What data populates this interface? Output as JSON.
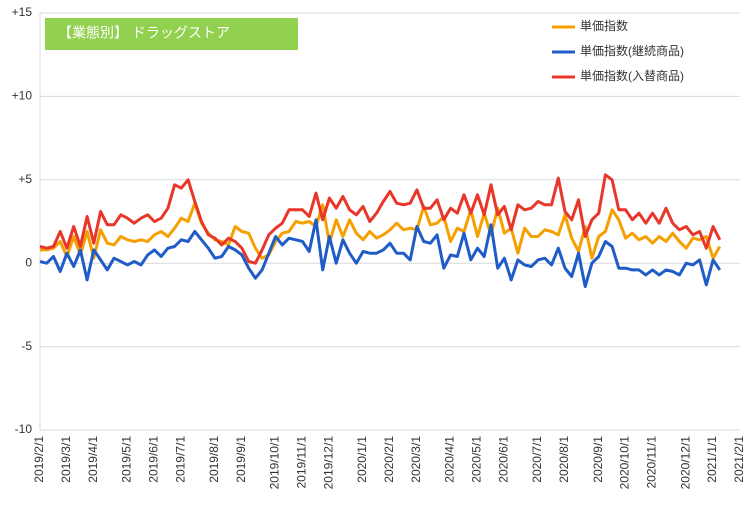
{
  "chart_data": {
    "type": "line",
    "title": "【業態別】 ドラッグストア",
    "title_color": "#92d050",
    "categories": [
      "2019/2/1",
      null,
      null,
      null,
      "2019/3/1",
      null,
      null,
      null,
      "2019/4/1",
      null,
      null,
      null,
      null,
      "2019/5/1",
      null,
      null,
      null,
      "2019/6/1",
      null,
      null,
      null,
      "2019/7/1",
      null,
      null,
      null,
      null,
      "2019/8/1",
      null,
      null,
      null,
      "2019/9/1",
      null,
      null,
      null,
      null,
      "2019/10/1",
      null,
      null,
      null,
      "2019/11/1",
      null,
      null,
      null,
      "2019/12/1",
      null,
      null,
      null,
      null,
      "2020/1/1",
      null,
      null,
      null,
      "2020/2/1",
      null,
      null,
      null,
      "2020/3/1",
      null,
      null,
      null,
      null,
      "2020/4/1",
      null,
      null,
      null,
      "2020/5/1",
      null,
      null,
      null,
      "2020/6/1",
      null,
      null,
      null,
      null,
      "2020/7/1",
      null,
      null,
      null,
      "2020/8/1",
      null,
      null,
      null,
      null,
      "2020/9/1",
      null,
      null,
      null,
      "2020/10/1",
      null,
      null,
      null,
      "2020/11/1",
      null,
      null,
      null,
      null,
      "2020/12/1",
      null,
      null,
      null,
      "2021/1/1",
      null,
      null,
      null,
      "2021/2/1"
    ],
    "series": [
      {
        "name": "単価指数",
        "color": "#f5a000",
        "values": [
          0.8,
          0.8,
          0.9,
          1.3,
          0.4,
          1.6,
          0.5,
          1.9,
          0.3,
          2.0,
          1.2,
          1.1,
          1.6,
          1.4,
          1.3,
          1.4,
          1.3,
          1.7,
          1.9,
          1.6,
          2.1,
          2.7,
          2.5,
          3.6,
          2.4,
          1.8,
          1.4,
          1.3,
          1.1,
          2.2,
          1.9,
          1.8,
          0.9,
          0.3,
          0.5,
          1.3,
          1.8,
          1.9,
          2.5,
          2.4,
          2.5,
          2.2,
          3.5,
          1.2,
          2.6,
          1.6,
          2.6,
          1.8,
          1.4,
          1.9,
          1.5,
          1.7,
          2.0,
          2.4,
          2.0,
          2.1,
          2.0,
          3.4,
          2.3,
          2.4,
          2.8,
          1.3,
          2.1,
          1.9,
          3.2,
          1.6,
          3.0,
          1.7,
          3.3,
          1.8,
          2.1,
          0.6,
          2.1,
          1.6,
          1.6,
          2.0,
          1.9,
          1.7,
          2.9,
          1.5,
          0.7,
          2.2,
          0.3,
          1.6,
          1.9,
          3.2,
          2.6,
          1.5,
          1.8,
          1.4,
          1.6,
          1.2,
          1.6,
          1.3,
          1.8,
          1.3,
          0.9,
          1.5,
          1.4,
          1.6,
          0.3,
          1.0,
          null,
          null,
          null
        ]
      },
      {
        "name": "単価指数(継続商品)",
        "color": "#1f5cc7",
        "values": [
          0.1,
          0.0,
          0.4,
          -0.5,
          0.6,
          -0.2,
          0.8,
          -1.0,
          0.8,
          0.2,
          -0.4,
          0.3,
          0.1,
          -0.1,
          0.1,
          -0.1,
          0.5,
          0.8,
          0.4,
          0.9,
          1.0,
          1.4,
          1.3,
          1.9,
          1.4,
          0.9,
          0.3,
          0.4,
          1.0,
          0.8,
          0.5,
          -0.3,
          -0.9,
          -0.4,
          0.6,
          1.6,
          1.1,
          1.5,
          1.4,
          1.3,
          0.7,
          2.6,
          -0.4,
          1.6,
          0.0,
          1.4,
          0.6,
          0.0,
          0.7,
          0.6,
          0.6,
          0.8,
          1.2,
          0.6,
          0.6,
          0.2,
          2.2,
          1.3,
          1.2,
          1.7,
          -0.3,
          0.5,
          0.4,
          1.8,
          0.2,
          0.9,
          0.4,
          2.3,
          -0.3,
          0.3,
          -1.0,
          0.2,
          -0.1,
          -0.2,
          0.2,
          0.3,
          -0.1,
          0.9,
          -0.3,
          -0.8,
          0.6,
          -1.4,
          0.0,
          0.4,
          1.3,
          1.0,
          -0.3,
          -0.3,
          -0.4,
          -0.4,
          -0.7,
          -0.4,
          -0.7,
          -0.4,
          -0.5,
          -0.7,
          0.0,
          -0.1,
          0.2,
          -1.3,
          0.2,
          -0.4,
          null,
          null,
          null
        ]
      },
      {
        "name": "単価指数(入替商品)",
        "color": "#e8372a",
        "values": [
          1.0,
          0.9,
          1.0,
          1.9,
          0.9,
          2.2,
          1.0,
          2.8,
          1.2,
          3.1,
          2.3,
          2.3,
          2.9,
          2.7,
          2.4,
          2.7,
          2.9,
          2.5,
          2.7,
          3.3,
          4.7,
          4.5,
          5.0,
          3.7,
          2.5,
          1.7,
          1.5,
          1.1,
          1.5,
          1.3,
          0.9,
          0.1,
          0.0,
          0.8,
          1.7,
          2.1,
          2.4,
          3.2,
          3.2,
          3.2,
          2.8,
          4.2,
          2.6,
          3.9,
          3.3,
          4.0,
          3.2,
          2.9,
          3.4,
          2.5,
          3.0,
          3.7,
          4.3,
          3.6,
          3.5,
          3.6,
          4.4,
          3.3,
          3.3,
          3.8,
          2.6,
          3.3,
          3.0,
          4.1,
          3.0,
          4.1,
          2.9,
          4.7,
          2.9,
          3.4,
          2.0,
          3.5,
          3.2,
          3.3,
          3.7,
          3.5,
          3.5,
          5.1,
          3.1,
          2.6,
          3.8,
          1.6,
          2.6,
          3.0,
          5.3,
          5.0,
          3.2,
          3.2,
          2.6,
          3.0,
          2.4,
          3.0,
          2.4,
          3.3,
          2.4,
          2.0,
          2.2,
          1.7,
          1.9,
          0.9,
          2.2,
          1.4,
          null,
          null,
          null
        ]
      }
    ],
    "ylim": [
      -10,
      15
    ],
    "yticks": [
      -10,
      -5,
      0,
      {
        "value": 5,
        "label": "+5"
      },
      {
        "value": 10,
        "label": "+10"
      },
      {
        "value": 15,
        "label": "+15"
      }
    ],
    "grid": true
  }
}
